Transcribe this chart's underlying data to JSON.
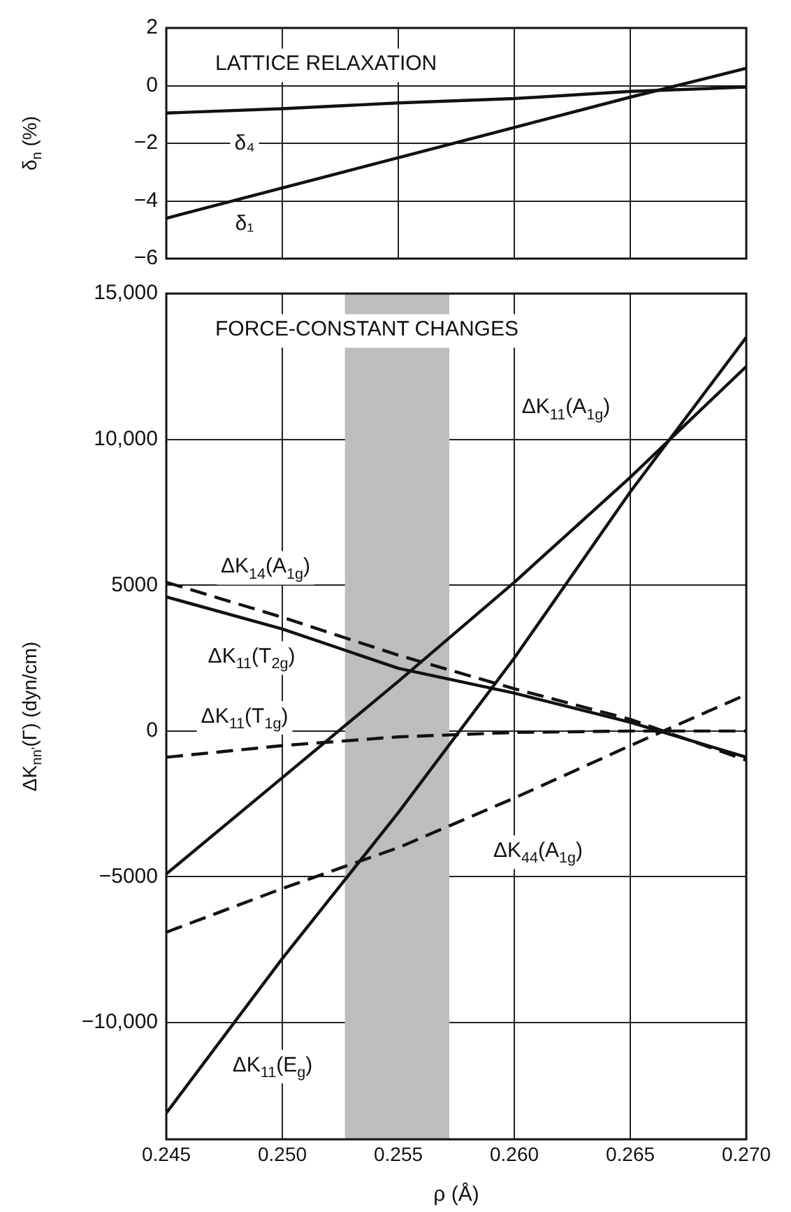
{
  "chart_data": [
    {
      "type": "line",
      "title": "LATTICE RELAXATION",
      "ylabel": "δ$_{n}$ (%)",
      "x": [
        0.245,
        0.25,
        0.255,
        0.26,
        0.265,
        0.27
      ],
      "xlim": [
        0.245,
        0.27
      ],
      "xticks": [
        0.245,
        0.25,
        0.255,
        0.26,
        0.265,
        0.27
      ],
      "ylim": [
        -6,
        2
      ],
      "yticks": [
        {
          "value": -6,
          "label": "−6"
        },
        {
          "value": -4,
          "label": "−4"
        },
        {
          "value": -2,
          "label": "−2"
        },
        0,
        2
      ],
      "grid": true,
      "legend": false,
      "tick_labels": "y",
      "line_style": "solid",
      "marker": "none",
      "series": [
        {
          "name": "δ₄",
          "color": "#111111",
          "values": [
            -0.95,
            -0.8,
            -0.6,
            -0.45,
            -0.2,
            -0.05
          ]
        },
        {
          "name": "δ₁",
          "color": "#111111",
          "values": [
            -4.6,
            -3.55,
            -2.5,
            -1.45,
            -0.4,
            0.6
          ]
        }
      ]
    },
    {
      "type": "line",
      "title": "FORCE-CONSTANT CHANGES",
      "xlabel": "ρ (Å)",
      "ylabel": "ΔK$_{nn'}$(Γ) (dyn/cm)",
      "x": [
        0.245,
        0.25,
        0.255,
        0.26,
        0.265,
        0.27
      ],
      "xlim": [
        0.245,
        0.27
      ],
      "xticks": [
        0.245,
        {
          "value": 0.25,
          "label": "0.250"
        },
        0.255,
        {
          "value": 0.26,
          "label": "0.260"
        },
        0.265,
        {
          "value": 0.27,
          "label": "0.270"
        }
      ],
      "ylim": [
        -14000,
        15000
      ],
      "yticks": [
        {
          "value": -10000,
          "label": "−10,000"
        },
        {
          "value": -5000,
          "label": "−5000"
        },
        0,
        5000,
        {
          "value": 10000,
          "label": "10,000"
        },
        {
          "value": 15000,
          "label": "15,000"
        }
      ],
      "grid": true,
      "legend": false,
      "marker": "none",
      "bands": [
        {
          "axis": "x",
          "from": 0.2527,
          "to": 0.2572,
          "color": "#bdbdbd"
        }
      ],
      "series": [
        {
          "name": "ΔK$_{11}$(A$_{1g}$)",
          "color": "#111111",
          "line_style": "solid",
          "values": [
            -4900,
            -1600,
            1700,
            5100,
            8700,
            12500
          ]
        },
        {
          "name": "ΔK$_{11}$(E$_{g}$)",
          "color": "#111111",
          "line_style": "solid",
          "values": [
            -13100,
            -7800,
            -2800,
            2500,
            8200,
            13500
          ]
        },
        {
          "name": "ΔK$_{14}$(A$_{1g}$)",
          "color": "#111111",
          "line_style": "dashed",
          "values": [
            5100,
            3900,
            2600,
            1450,
            400,
            -1000
          ]
        },
        {
          "name": "ΔK$_{11}$(T$_{2g}$)",
          "color": "#111111",
          "line_style": "solid",
          "values": [
            4600,
            3500,
            2150,
            1300,
            300,
            -900
          ]
        },
        {
          "name": "ΔK$_{11}$(T$_{1g}$)",
          "color": "#111111",
          "line_style": "dashed",
          "values": [
            -900,
            -500,
            -200,
            -50,
            0,
            0
          ]
        },
        {
          "name": "ΔK$_{44}$(A$_{1g}$)",
          "color": "#111111",
          "line_style": "dashed",
          "values": [
            -6900,
            -5400,
            -4000,
            -2300,
            -500,
            1250
          ]
        }
      ]
    }
  ]
}
